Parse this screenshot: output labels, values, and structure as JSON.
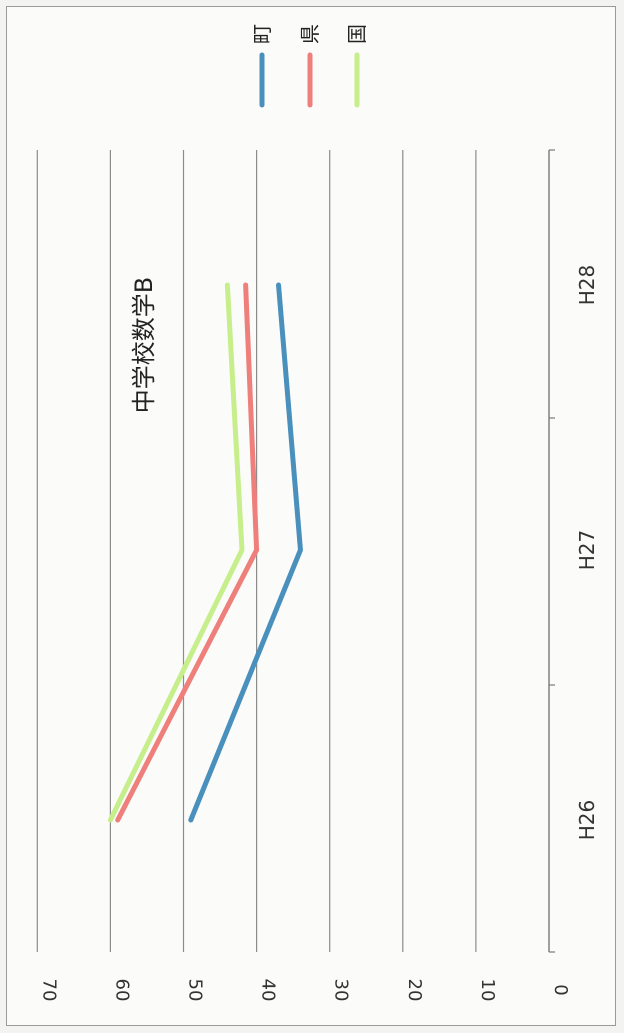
{
  "chart_data": {
    "type": "line",
    "title": "中学校数学B",
    "categories": [
      "H26",
      "H27",
      "H28"
    ],
    "series": [
      {
        "name": "町",
        "values": [
          49,
          34,
          37
        ],
        "color": "#4a90bd"
      },
      {
        "name": "県",
        "values": [
          59,
          40,
          41.5
        ],
        "color": "#ee7f7b"
      },
      {
        "name": "国",
        "values": [
          60,
          42,
          44
        ],
        "color": "#c6ee8a"
      }
    ],
    "ylim": [
      0,
      70
    ],
    "yticks": [
      0,
      10,
      20,
      30,
      40,
      50,
      60,
      70
    ],
    "grid": true,
    "legend": "top-right",
    "orientation": "rotated 90° clockwise"
  }
}
